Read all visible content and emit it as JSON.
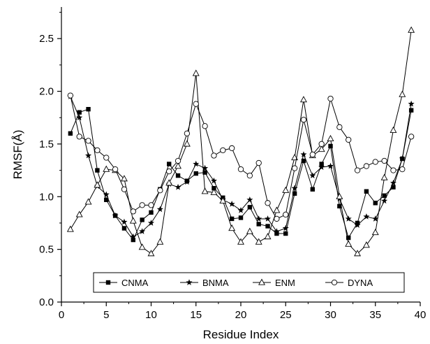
{
  "chart_data": {
    "type": "line",
    "xlabel": "Residue Index",
    "ylabel": "RMSF(Å)",
    "xlim": [
      0,
      40
    ],
    "ylim": [
      0.0,
      2.8
    ],
    "x_ticks": [
      "0",
      "5",
      "10",
      "15",
      "20",
      "25",
      "30",
      "35",
      "40"
    ],
    "y_ticks": [
      "0.0",
      "0.5",
      "1.0",
      "1.5",
      "2.0",
      "2.5"
    ],
    "grid": false,
    "legend_position": "bottom, inside plot",
    "x": [
      1,
      2,
      3,
      4,
      5,
      6,
      7,
      8,
      9,
      10,
      11,
      12,
      13,
      14,
      15,
      16,
      17,
      18,
      19,
      20,
      21,
      22,
      23,
      24,
      25,
      26,
      27,
      28,
      29,
      30,
      31,
      32,
      33,
      34,
      35,
      36,
      37,
      38,
      39
    ],
    "series": [
      {
        "name": "CNMA",
        "marker": "square",
        "values": [
          1.6,
          1.8,
          1.83,
          1.25,
          0.97,
          0.82,
          0.7,
          0.59,
          0.78,
          0.85,
          1.07,
          1.31,
          1.2,
          1.15,
          1.22,
          1.23,
          1.08,
          0.99,
          0.79,
          0.8,
          0.9,
          0.74,
          0.72,
          0.65,
          0.65,
          1.03,
          1.34,
          1.07,
          1.31,
          1.48,
          0.91,
          0.61,
          0.75,
          1.05,
          0.94,
          1.01,
          1.09,
          1.36,
          1.82
        ]
      },
      {
        "name": "BNMA",
        "marker": "star",
        "values": [
          1.95,
          1.75,
          1.39,
          1.1,
          1.02,
          0.82,
          0.76,
          0.62,
          0.67,
          0.75,
          0.88,
          1.12,
          1.09,
          1.14,
          1.31,
          1.27,
          1.15,
          0.97,
          0.93,
          0.87,
          0.97,
          0.79,
          0.79,
          0.67,
          0.7,
          1.08,
          1.4,
          1.2,
          1.28,
          1.29,
          0.98,
          0.79,
          0.73,
          0.81,
          0.79,
          0.96,
          1.13,
          1.36,
          1.88
        ]
      },
      {
        "name": "ENM",
        "marker": "triangle",
        "values": [
          0.69,
          0.83,
          0.95,
          1.11,
          1.26,
          1.25,
          1.17,
          0.77,
          0.52,
          0.46,
          0.57,
          1.13,
          1.29,
          1.5,
          2.17,
          1.05,
          1.04,
          0.96,
          0.7,
          0.57,
          0.67,
          0.57,
          0.62,
          0.87,
          1.06,
          1.37,
          1.92,
          1.39,
          1.45,
          1.55,
          1.0,
          0.55,
          0.46,
          0.54,
          0.66,
          1.18,
          1.63,
          1.97,
          2.58
        ]
      },
      {
        "name": "DYNA",
        "marker": "circle",
        "values": [
          1.96,
          1.57,
          1.53,
          1.44,
          1.37,
          1.26,
          1.07,
          0.86,
          0.92,
          0.92,
          1.06,
          1.24,
          1.34,
          1.6,
          1.88,
          1.67,
          1.39,
          1.44,
          1.46,
          1.26,
          1.2,
          1.32,
          0.94,
          0.79,
          0.83,
          1.27,
          1.73,
          1.4,
          1.5,
          1.93,
          1.66,
          1.54,
          1.25,
          1.29,
          1.33,
          1.34,
          1.25,
          1.26,
          1.57
        ]
      }
    ]
  }
}
